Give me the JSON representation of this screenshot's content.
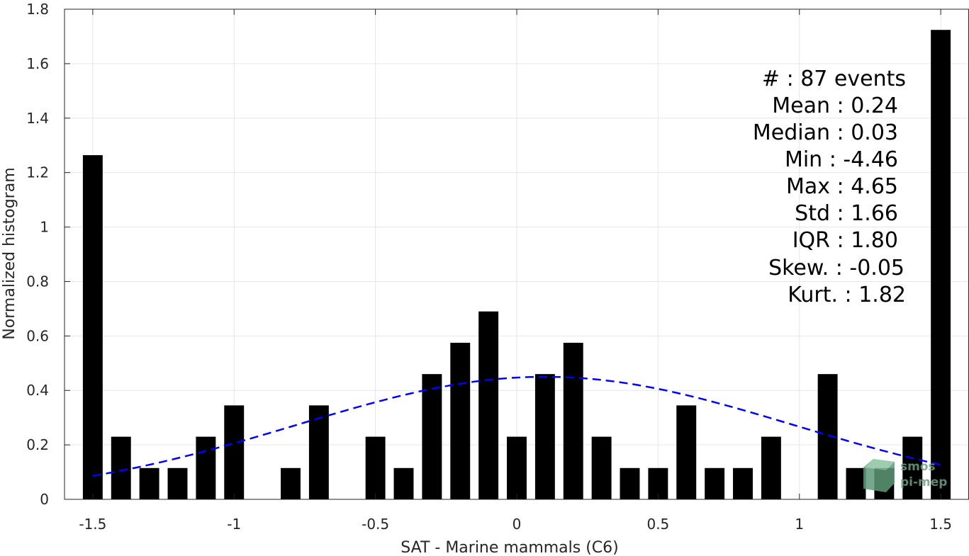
{
  "chart_data": {
    "type": "bar",
    "xlabel": "SAT - Marine mammals (C6)",
    "ylabel": "Normalized histogram",
    "xlim": [
      -1.6,
      1.6
    ],
    "ylim": [
      0,
      1.8
    ],
    "xticks": [
      -1.5,
      -1,
      -0.5,
      0,
      0.5,
      1,
      1.5
    ],
    "xtick_labels": [
      "-1.5",
      "-1",
      "-0.5",
      "0",
      "0.5",
      "1",
      "1.5"
    ],
    "yticks": [
      0,
      0.2,
      0.4,
      0.6,
      0.8,
      1,
      1.2,
      1.4,
      1.6,
      1.8
    ],
    "ytick_labels": [
      "0",
      "0.2",
      "0.4",
      "0.6",
      "0.8",
      "1",
      "1.2",
      "1.4",
      "1.6",
      "1.8"
    ],
    "grid": true,
    "bar_color": "#000000",
    "bars": {
      "x": [
        -1.5,
        -1.4,
        -1.3,
        -1.2,
        -1.1,
        -1.0,
        -0.9,
        -0.8,
        -0.7,
        -0.6,
        -0.5,
        -0.4,
        -0.3,
        -0.2,
        -0.1,
        0.0,
        0.1,
        0.2,
        0.3,
        0.4,
        0.5,
        0.6,
        0.7,
        0.8,
        0.9,
        1.0,
        1.1,
        1.2,
        1.3,
        1.4,
        1.5
      ],
      "values": [
        1.264,
        0.23,
        0.115,
        0.115,
        0.23,
        0.345,
        0.0,
        0.115,
        0.345,
        0.0,
        0.23,
        0.115,
        0.46,
        0.575,
        0.69,
        0.23,
        0.46,
        0.575,
        0.23,
        0.115,
        0.115,
        0.345,
        0.115,
        0.115,
        0.23,
        0.0,
        0.46,
        0.115,
        0.115,
        0.23,
        1.724
      ],
      "width": 0.07
    },
    "fit_curve": {
      "type": "normal",
      "mean": 0.1,
      "std": 0.88,
      "peak": 0.45,
      "x_range": [
        -1.5,
        1.5
      ],
      "color": "#0000ff",
      "style": "dashed"
    },
    "stats_lines": [
      "#  : 87 events",
      "Mean : 0.24",
      "Median : 0.03",
      "Min : -4.46",
      "Max : 4.65",
      "Std : 1.66",
      "IQR : 1.80",
      "Skew. : -0.05",
      "Kurt. : 1.82"
    ],
    "logo": {
      "line1": "smos",
      "line2": "pi-mep",
      "color": "#6f9f86"
    }
  }
}
